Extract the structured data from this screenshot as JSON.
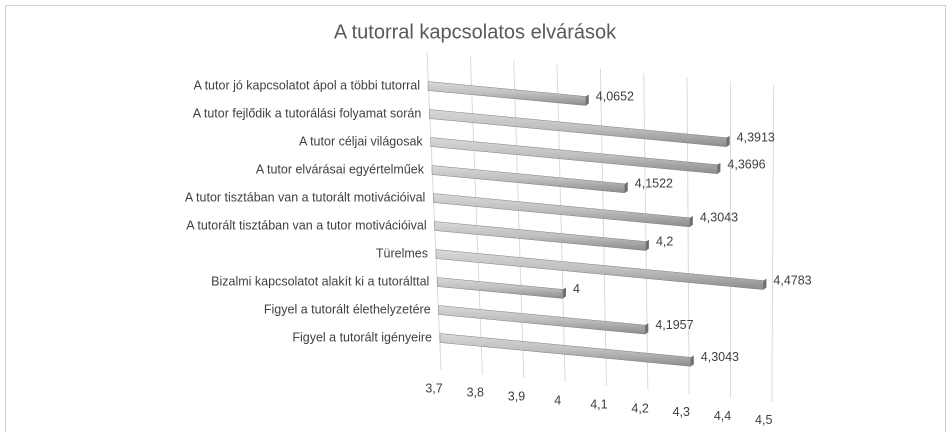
{
  "chart_data": {
    "type": "bar",
    "orientation": "horizontal",
    "title": "A tutorral kapcsolatos elvárások",
    "categories": [
      "A tutor jó kapcsolatot ápol a többi tutorral",
      "A tutor fejlődik a tutorálási folyamat során",
      "A tutor céljai világosak",
      "A tutor elvárásai egyértelműek",
      "A tutor tisztában van a tutorált motivációival",
      "A tutorált tisztában van a tutor motivációival",
      "Türelmes",
      "Bizalmi kapcsolatot alakít ki a tutorálttal",
      "Figyel a tutorált élethelyzetére",
      "Figyel a tutorált igényeire"
    ],
    "values": [
      4.0652,
      4.3913,
      4.3696,
      4.1522,
      4.3043,
      4.2,
      4.4783,
      4,
      4.1957,
      4.3043
    ],
    "value_labels": [
      "4,0652",
      "4,3913",
      "4,3696",
      "4,1522",
      "4,3043",
      "4,2",
      "4,4783",
      "4",
      "4,1957",
      "4,3043"
    ],
    "color": "#a6a6a6",
    "xlim": [
      3.7,
      4.5
    ],
    "xticks": [
      {
        "value": 3.7,
        "label": "3,7"
      },
      {
        "value": 3.8,
        "label": "3,8"
      },
      {
        "value": 3.9,
        "label": "3,9"
      },
      4,
      {
        "value": 4.1,
        "label": "4,1"
      },
      {
        "value": 4.2,
        "label": "4,2"
      },
      {
        "value": 4.3,
        "label": "4,3"
      },
      {
        "value": 4.4,
        "label": "4,4"
      },
      {
        "value": 4.5,
        "label": "4,5"
      }
    ],
    "grid": true
  }
}
